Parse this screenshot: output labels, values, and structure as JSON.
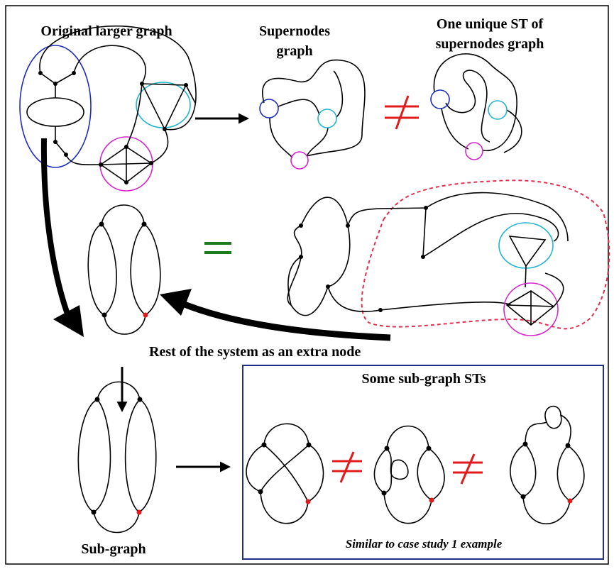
{
  "labels": {
    "original": "Original larger graph",
    "supernodes": [
      "Supernodes",
      "graph"
    ],
    "unique_st": [
      "One unique ST of",
      "supernodes graph"
    ],
    "rest": "Rest of the system as an extra node",
    "subgraph": "Sub-graph",
    "sub_sts": "Some sub-graph STs",
    "similar": "Similar to case study 1 example"
  }
}
